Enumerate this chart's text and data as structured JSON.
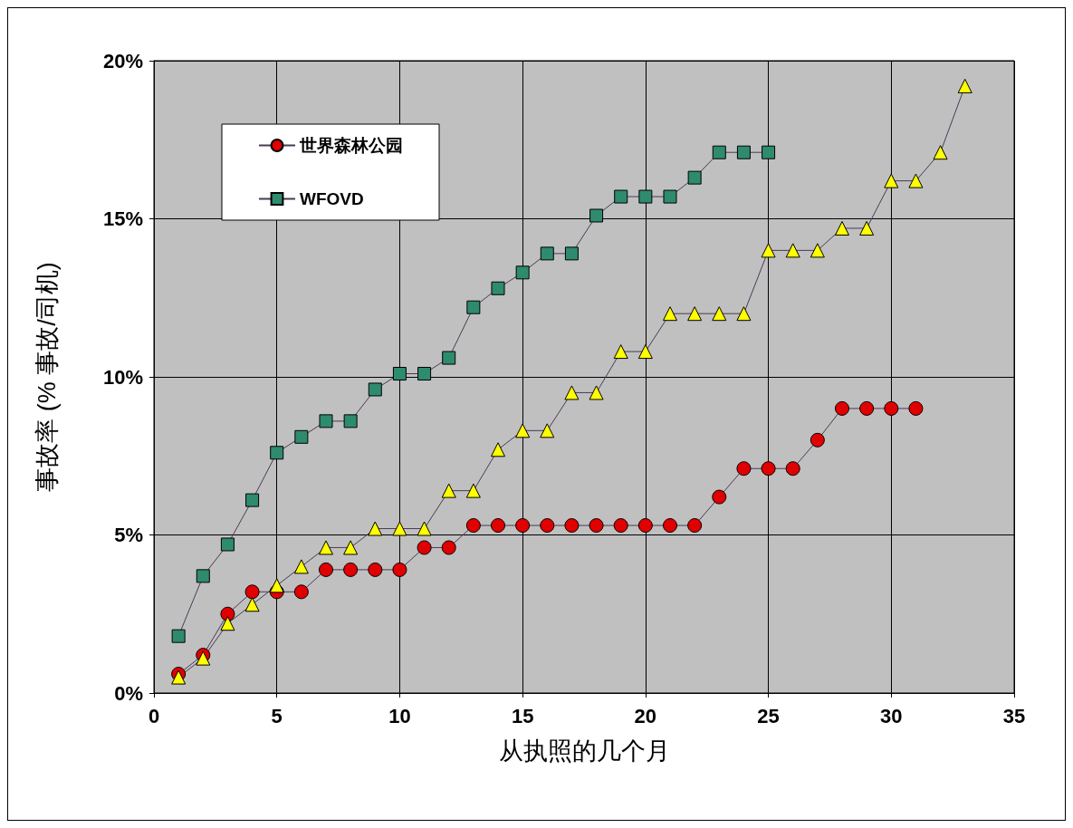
{
  "chart_data": {
    "type": "line",
    "xlabel": "从执照的几个月",
    "ylabel": "事故率 (% 事故/司机)",
    "x": [
      1,
      2,
      3,
      4,
      5,
      6,
      7,
      8,
      9,
      10,
      11,
      12,
      13,
      14,
      15,
      16,
      17,
      18,
      19,
      20,
      21,
      22,
      23,
      24,
      25,
      26,
      27,
      28,
      29,
      30,
      31,
      32,
      33
    ],
    "xlim": [
      0,
      35
    ],
    "xticks": [
      0,
      5,
      10,
      15,
      20,
      25,
      30,
      35
    ],
    "ylim": [
      0,
      20
    ],
    "yticks": [
      {
        "value": 0,
        "label": "0%"
      },
      {
        "value": 5,
        "label": "5%"
      },
      {
        "value": 10,
        "label": "10%"
      },
      {
        "value": 15,
        "label": "15%"
      },
      {
        "value": 20,
        "label": "20%"
      }
    ],
    "grid": true,
    "legend": "top left",
    "series": [
      {
        "name": "世界森林公园",
        "color": "#e00000",
        "marker": "circle",
        "values": [
          0.6,
          1.2,
          2.5,
          3.2,
          3.2,
          3.2,
          3.9,
          3.9,
          3.9,
          3.9,
          4.6,
          4.6,
          5.3,
          5.3,
          5.3,
          5.3,
          5.3,
          5.3,
          5.3,
          5.3,
          5.3,
          5.3,
          6.2,
          7.1,
          7.1,
          7.1,
          8.0,
          9.0,
          9.0,
          9.0,
          9.0,
          null,
          null
        ]
      },
      {
        "color": "#ffff00",
        "marker": "triangle",
        "values": [
          0.5,
          1.1,
          2.2,
          2.8,
          3.4,
          4.0,
          4.6,
          4.6,
          5.2,
          5.2,
          5.2,
          6.4,
          6.4,
          7.7,
          8.3,
          8.3,
          9.5,
          9.5,
          10.8,
          10.8,
          12.0,
          12.0,
          12.0,
          12.0,
          14.0,
          14.0,
          14.0,
          14.7,
          14.7,
          16.2,
          16.2,
          17.1,
          19.2
        ]
      },
      {
        "name": "WFOVD",
        "color": "#2e8b6e",
        "marker": "square",
        "values": [
          1.8,
          3.7,
          4.7,
          6.1,
          7.6,
          8.1,
          8.6,
          8.6,
          9.6,
          10.1,
          10.1,
          10.6,
          12.2,
          12.8,
          13.3,
          13.9,
          13.9,
          15.1,
          15.7,
          15.7,
          15.7,
          16.3,
          17.1,
          17.1,
          17.1,
          null,
          null,
          null,
          null,
          null,
          null,
          null,
          null
        ]
      }
    ]
  }
}
